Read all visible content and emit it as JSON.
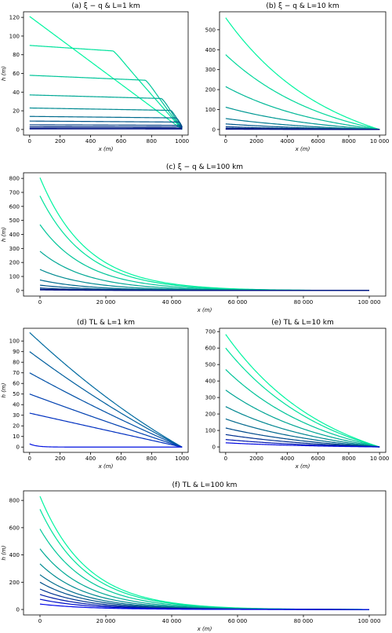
{
  "chart_data": [
    {
      "id": "a",
      "type": "line",
      "title": "(a) ξ − q & L=1 km",
      "xlabel": "x (m)",
      "ylabel": "h (m)",
      "xlim": [
        -40,
        1040
      ],
      "ylim": [
        -6,
        126
      ],
      "xticks": [
        0,
        200,
        400,
        600,
        800,
        1000
      ],
      "yticks": [
        0,
        20,
        40,
        60,
        80,
        100,
        120
      ],
      "L": 1000,
      "shape": "plateau",
      "h0": [
        121,
        90,
        58,
        37,
        23,
        14,
        9,
        5,
        3,
        1.5,
        0.6
      ],
      "colors": [
        "#00f5a0",
        "#00e29c",
        "#00c599",
        "#00a895",
        "#008a91",
        "#006b8d",
        "#005489",
        "#003c86",
        "#002984",
        "#001a83",
        "#000f82"
      ]
    },
    {
      "id": "b",
      "type": "line",
      "title": "(b) ξ − q & L=10 km",
      "xlabel": "x (m)",
      "ylabel": "",
      "xlim": [
        -400,
        10400
      ],
      "ylim": [
        -28,
        590
      ],
      "xticks": [
        0,
        2000,
        4000,
        6000,
        8000,
        10000
      ],
      "xtick_labels": [
        "0",
        "2000",
        "4000",
        "6000",
        "8000",
        "10 000"
      ],
      "yticks": [
        0,
        100,
        200,
        300,
        400,
        500
      ],
      "L": 10000,
      "shape": "decay",
      "k": 1.5,
      "h0": [
        560,
        375,
        215,
        112,
        55,
        28,
        14,
        7,
        3,
        1.5
      ],
      "colors": [
        "#00f5a0",
        "#00d89b",
        "#00b897",
        "#009893",
        "#00788f",
        "#00588a",
        "#003f86",
        "#002984",
        "#001883",
        "#000f82"
      ]
    },
    {
      "id": "c",
      "type": "line",
      "title": "(c) ξ − q & L=100 km",
      "xlabel": "x (m)",
      "ylabel": "h (m)",
      "xlim": [
        -5000,
        105000
      ],
      "ylim": [
        -40,
        840
      ],
      "xticks": [
        0,
        20000,
        40000,
        60000,
        80000,
        100000
      ],
      "xtick_labels": [
        "0",
        "20 000",
        "40 000",
        "60 000",
        "80 000",
        "100 000"
      ],
      "yticks": [
        0,
        100,
        200,
        300,
        400,
        500,
        600,
        700,
        800
      ],
      "L": 100000,
      "shape": "decay",
      "k": 7,
      "h0": [
        805,
        675,
        470,
        280,
        150,
        75,
        38,
        18,
        9,
        4
      ],
      "colors": [
        "#00f5a0",
        "#00e29c",
        "#00c599",
        "#00a895",
        "#008a91",
        "#006b8d",
        "#005489",
        "#003c86",
        "#002484",
        "#000f82"
      ]
    },
    {
      "id": "d",
      "type": "line",
      "title": "(d) TL & L=1 km",
      "xlabel": "x (m)",
      "ylabel": "h (m)",
      "xlim": [
        -40,
        1040
      ],
      "ylim": [
        -5,
        112
      ],
      "xticks": [
        0,
        200,
        400,
        600,
        800,
        1000
      ],
      "yticks": [
        0,
        10,
        20,
        30,
        40,
        50,
        60,
        70,
        80,
        90,
        100
      ],
      "L": 1000,
      "shape": "tl",
      "h0": [
        108,
        90,
        70,
        50,
        32,
        3
      ],
      "colors": [
        "#006aa0",
        "#005e9e",
        "#0050a6",
        "#0040b0",
        "#0030c0",
        "#0010e0"
      ]
    },
    {
      "id": "e",
      "type": "line",
      "title": "(e) TL & L=10 km",
      "xlabel": "x (m)",
      "ylabel": "",
      "xlim": [
        -400,
        10400
      ],
      "ylim": [
        -33,
        720
      ],
      "xticks": [
        0,
        2000,
        4000,
        6000,
        8000,
        10000
      ],
      "xtick_labels": [
        "0",
        "2000",
        "4000",
        "6000",
        "8000",
        "10 000"
      ],
      "yticks": [
        0,
        100,
        200,
        300,
        400,
        500,
        600,
        700
      ],
      "L": 10000,
      "shape": "decay",
      "k": 1.5,
      "h0": [
        683,
        600,
        470,
        345,
        245,
        170,
        115,
        75,
        45,
        25
      ],
      "colors": [
        "#00f5a0",
        "#00e09c",
        "#00c398",
        "#00a494",
        "#008690",
        "#00688d",
        "#004a8b",
        "#002f90",
        "#0018b0",
        "#0008e0"
      ]
    },
    {
      "id": "f",
      "type": "line",
      "title": "(f) TL & L=100 km",
      "xlabel": "x (m)",
      "ylabel": "h (m)",
      "xlim": [
        -5000,
        105000
      ],
      "ylim": [
        -40,
        870
      ],
      "xticks": [
        0,
        20000,
        40000,
        60000,
        80000,
        100000
      ],
      "xtick_labels": [
        "0",
        "20 000",
        "40 000",
        "60 000",
        "80 000",
        "100 000"
      ],
      "yticks": [
        0,
        200,
        400,
        600,
        800
      ],
      "L": 100000,
      "shape": "decay",
      "k": 7,
      "h0": [
        830,
        735,
        590,
        445,
        335,
        255,
        200,
        150,
        110,
        75,
        40
      ],
      "colors": [
        "#00f5a0",
        "#00e39c",
        "#00c799",
        "#00a995",
        "#008b91",
        "#006d8d",
        "#00508b",
        "#003590",
        "#001da8",
        "#000ec8",
        "#0005e8"
      ]
    }
  ]
}
